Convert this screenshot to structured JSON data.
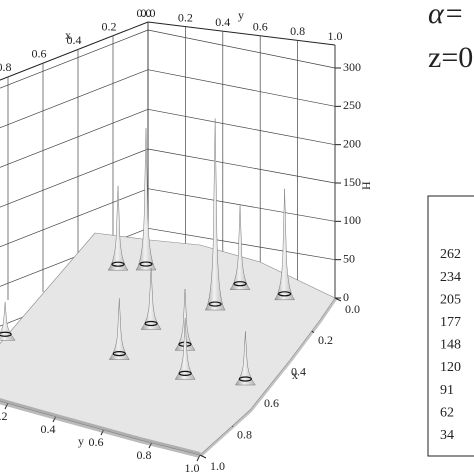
{
  "chart_data": {
    "type": "surface3d",
    "xlabel": "x",
    "ylabel": "y",
    "zlabel": "H",
    "xticks": [
      {
        "value": 0,
        "label": "0.0"
      },
      0.2,
      0.4,
      0.6,
      0.8,
      {
        "value": 1,
        "label": "1.0"
      }
    ],
    "yticks": [
      {
        "value": 0,
        "label": "0.0"
      },
      0.2,
      0.4,
      0.6,
      0.8,
      {
        "value": 1,
        "label": "1.0"
      }
    ],
    "zlim": [
      0,
      300
    ],
    "zticks": [
      0,
      50,
      100,
      150,
      200,
      250,
      300
    ],
    "peaks": {
      "x": [
        0.23,
        0.08,
        0.12,
        0.16,
        0.09,
        0.42,
        0.48,
        0.62,
        0.63,
        0.575,
        0.68
      ],
      "y": [
        0.63,
        0.835,
        0.28,
        0.186,
        0.655,
        0.47,
        0.645,
        0.45,
        0.73,
        0.95,
        0.008
      ],
      "values": [
        250,
        145,
        185,
        110,
        110,
        80,
        80,
        80,
        80,
        70,
        50
      ]
    },
    "annotations": [
      "α=",
      "z=0"
    ],
    "levels": [
      262,
      234,
      205,
      177,
      148,
      120,
      91,
      62,
      34
    ]
  }
}
